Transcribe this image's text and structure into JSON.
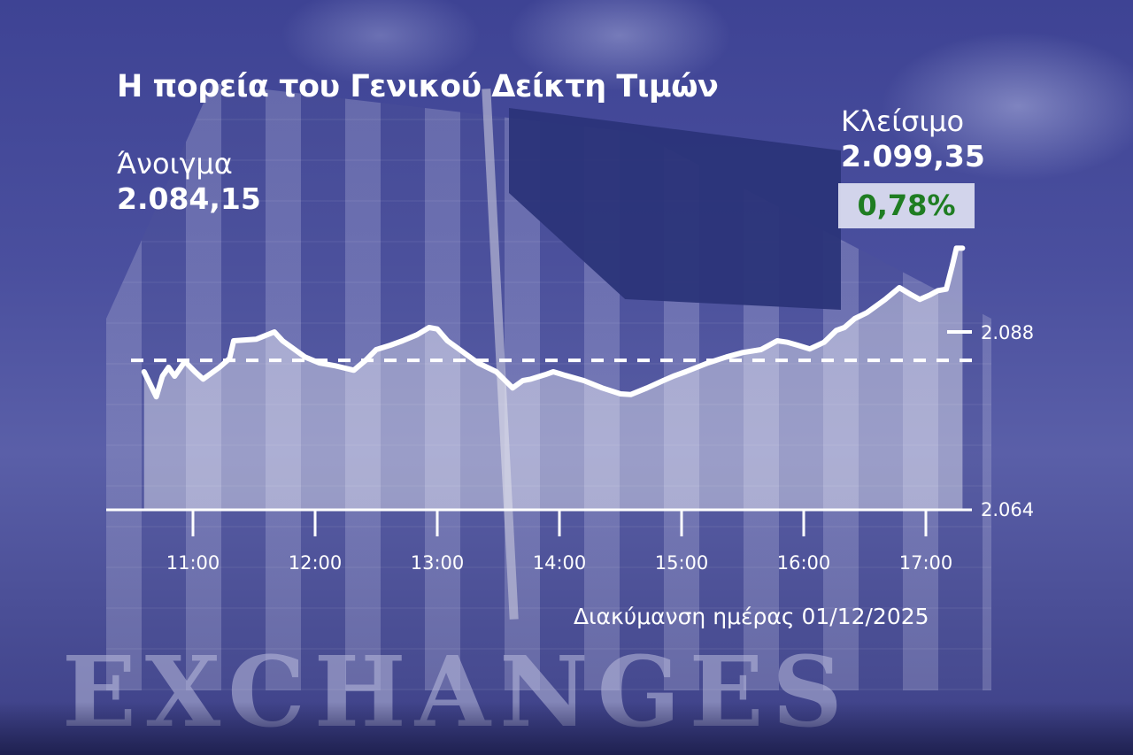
{
  "title": "Η πορεία του Γενικού Δείκτη Τιμών",
  "open": {
    "label": "Άνοιγμα",
    "value": "2.084,15"
  },
  "close": {
    "label": "Κλείσιμο",
    "value": "2.099,35",
    "change": "0,78%"
  },
  "range_caption": "Διακύμανση ημέρας 01/12/2025",
  "background_sign": "EXCHANGES",
  "colors": {
    "line": "#ffffff",
    "change_positive": "#1f7d22",
    "background": "#4a4f9e"
  },
  "chart_data": {
    "type": "area",
    "title": "Η πορεία του Γενικού Δείκτη Τιμών",
    "xlabel": "Διακύμανση ημέρας 01/12/2025",
    "ylabel": "",
    "x_ticks": [
      "11:00",
      "12:00",
      "13:00",
      "14:00",
      "15:00",
      "16:00",
      "17:00"
    ],
    "y_ticks": [
      {
        "value": 2088,
        "label": "2.088"
      },
      {
        "value": 2064,
        "label": "2.064"
      }
    ],
    "ylim": [
      2064,
      2100
    ],
    "xlim": [
      "10:15",
      "17:20"
    ],
    "grid": false,
    "reference_line": {
      "value": 2084.15,
      "style": "dashed"
    },
    "series": [
      {
        "x": [
          "10:36",
          "10:42",
          "10:45",
          "10:48",
          "10:51",
          "10:56",
          "11:01",
          "11:05",
          "11:13",
          "11:18",
          "11:20",
          "11:31",
          "11:40",
          "11:44",
          "11:55",
          "12:02",
          "12:10",
          "12:19",
          "12:25",
          "12:30",
          "12:37",
          "12:43",
          "12:50",
          "12:56",
          "13:00",
          "13:05",
          "13:11",
          "13:20",
          "13:29",
          "13:37",
          "13:42",
          "13:46",
          "13:53",
          "13:57",
          "14:03",
          "14:12",
          "14:21",
          "14:30",
          "14:35",
          "14:43",
          "14:51",
          "14:56",
          "15:02",
          "15:13",
          "15:22",
          "15:30",
          "15:39",
          "15:47",
          "15:52",
          "15:57",
          "16:03",
          "16:10",
          "16:16",
          "16:20",
          "16:25",
          "16:31",
          "16:40",
          "16:47",
          "16:53",
          "16:57",
          "17:02",
          "17:06",
          "17:10",
          "17:13",
          "17:15",
          "17:18"
        ],
        "values": [
          2082.6,
          2079.2,
          2082.0,
          2083.2,
          2082.0,
          2084.0,
          2082.6,
          2081.6,
          2083.2,
          2084.4,
          2086.8,
          2087.0,
          2088.0,
          2086.8,
          2084.6,
          2083.8,
          2083.4,
          2082.8,
          2084.2,
          2085.6,
          2086.2,
          2086.8,
          2087.6,
          2088.6,
          2088.4,
          2086.8,
          2085.6,
          2083.8,
          2082.6,
          2080.4,
          2081.4,
          2081.6,
          2082.2,
          2082.6,
          2082.1,
          2081.4,
          2080.4,
          2079.6,
          2079.5,
          2080.4,
          2081.4,
          2082.0,
          2082.6,
          2083.8,
          2084.6,
          2085.2,
          2085.6,
          2086.8,
          2086.6,
          2086.2,
          2085.7,
          2086.6,
          2088.2,
          2088.6,
          2089.8,
          2090.6,
          2092.4,
          2094.0,
          2093.0,
          2092.4,
          2093.0,
          2093.6,
          2093.8,
          2097.0,
          2099.35,
          2099.35
        ]
      }
    ]
  }
}
